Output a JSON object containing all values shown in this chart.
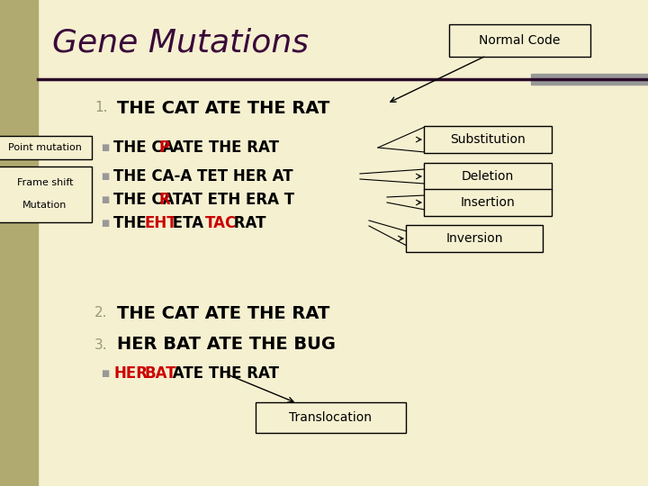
{
  "bg_color": "#f5f0d0",
  "left_bar_color": "#b0aa70",
  "title": "Gene Mutations",
  "title_color": "#3a0a3a",
  "title_fontsize": 26,
  "horizontal_line_color": "#2a0a2a",
  "normal_code_box": "Normal Code",
  "substitution_box": "Substitution",
  "deletion_box": "Deletion",
  "insertion_box": "Insertion",
  "inversion_box": "Inversion",
  "translocation_box": "Translocation",
  "bg_box_color": "#f5f0d0",
  "left_label_1": "Point mutation",
  "left_label_2": "Frame shift",
  "left_label_3": "Mutation",
  "main_text_color": "#000000",
  "red_color": "#cc0000",
  "number_color": "#999977",
  "gray_bullet": "#999999"
}
